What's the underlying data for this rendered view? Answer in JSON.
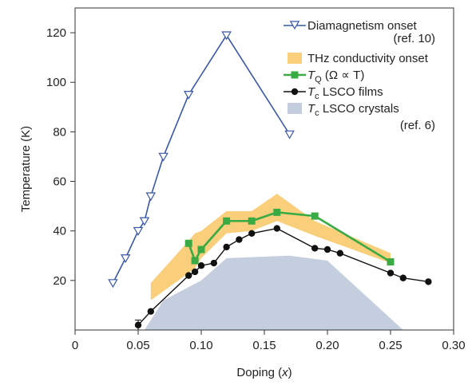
{
  "chart_data": {
    "type": "line",
    "xlabel": "Doping (",
    "xlabel_var": "x",
    "xlabel_tail": ")",
    "ylabel": "Temperature (K)",
    "xlim": [
      0,
      0.3
    ],
    "ylim": [
      0,
      130
    ],
    "x_ticks": [
      0,
      0.05,
      0.1,
      0.15,
      0.2,
      0.25,
      0.3
    ],
    "x_tick_labels": [
      "0",
      "0.05",
      "0.10",
      "0.15",
      "0.20",
      "0.25",
      "0.30"
    ],
    "y_ticks": [
      20,
      40,
      60,
      80,
      100,
      120
    ],
    "y_tick_labels": [
      "20",
      "40",
      "60",
      "80",
      "100",
      "120"
    ],
    "colors": {
      "diamagnetism": "#3a57a8",
      "thz": "#f9cf7c",
      "tq": "#3aaa45",
      "tc_films": "#111111",
      "tc_crystals": "#c4cedf"
    },
    "series": [
      {
        "key": "diamagnetism",
        "name": "Diamagnetism onset",
        "name_extra": "(ref. 10)",
        "marker": "triangle-down-open",
        "x": [
          0.03,
          0.04,
          0.05,
          0.055,
          0.06,
          0.07,
          0.09,
          0.12,
          0.17
        ],
        "y": [
          19,
          29,
          40,
          44,
          54,
          70,
          95,
          119,
          79
        ]
      },
      {
        "key": "tq",
        "name_prefix": "T",
        "name_sub": "Q",
        "name_rest": " (Ω ∝ T)",
        "marker": "square",
        "x": [
          0.09,
          0.095,
          0.1,
          0.12,
          0.14,
          0.16,
          0.19,
          0.25
        ],
        "y": [
          35,
          28,
          32.5,
          44,
          44,
          47.5,
          46,
          27.5
        ]
      },
      {
        "key": "tc_films",
        "name_prefix": "T",
        "name_sub": "c",
        "name_rest": " LSCO films",
        "marker": "circle",
        "x": [
          0.05,
          0.06,
          0.09,
          0.095,
          0.1,
          0.11,
          0.12,
          0.13,
          0.14,
          0.16,
          0.19,
          0.2,
          0.21,
          0.25,
          0.26,
          0.28
        ],
        "y": [
          2,
          7.5,
          22,
          23.5,
          26,
          27,
          33.5,
          36.5,
          39,
          41,
          33,
          32.5,
          31,
          23,
          21,
          19.5
        ]
      }
    ],
    "bands": [
      {
        "key": "thz",
        "name": "THz conductivity onset",
        "x": [
          0.06,
          0.09,
          0.095,
          0.1,
          0.12,
          0.14,
          0.16,
          0.19,
          0.25
        ],
        "upper": [
          19,
          36,
          39,
          40,
          48,
          48,
          55,
          44,
          31
        ],
        "lower": [
          12,
          23,
          25,
          29,
          39,
          40,
          44,
          38,
          27
        ]
      }
    ],
    "areas": [
      {
        "key": "tc_crystals",
        "name_prefix": "T",
        "name_sub": "c",
        "name_rest": " LSCO crystals",
        "name_extra": "(ref. 6)",
        "x": [
          0.055,
          0.07,
          0.1,
          0.12,
          0.17,
          0.2,
          0.26
        ],
        "y": [
          0,
          12,
          20,
          29,
          30,
          28,
          0
        ]
      }
    ],
    "error_bar": {
      "x": 0.05,
      "low": 0,
      "high": 4
    },
    "legend_position": "top-right"
  }
}
